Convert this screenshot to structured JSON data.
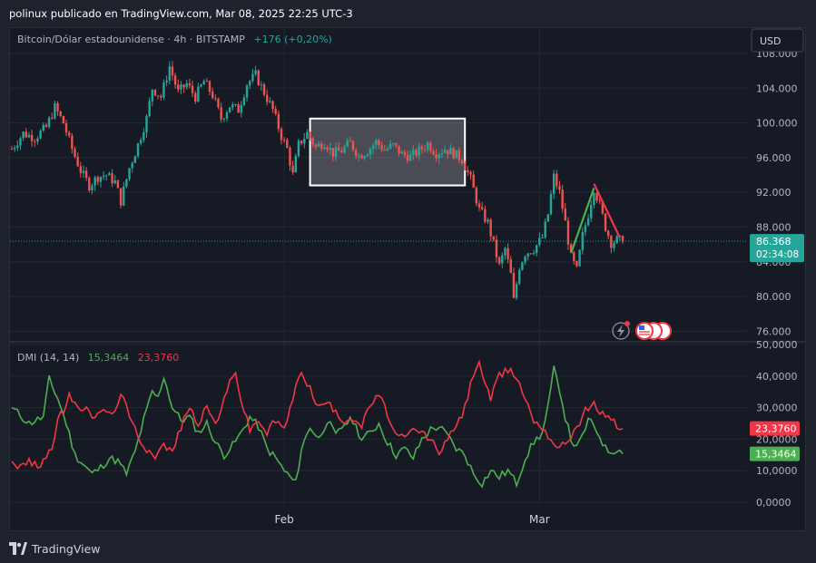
{
  "header": {
    "text": "polinux publicado en TradingView.com, Mar 08, 2025 22:25 UTC-3"
  },
  "footer": {
    "brand": "TradingView"
  },
  "colors": {
    "background": "#1e222d",
    "pane": "#161a25",
    "grid": "#242833",
    "up": "#26a69a",
    "down": "#ef5350",
    "plus_di": "#4caf50",
    "minus_di": "#f23645",
    "box": "#ffffff"
  },
  "chart_data": [
    {
      "type": "candlestick",
      "symbol_label": "Bitcoin/Dólar estadounidense · 4h · BITSTAMP",
      "change_label": "+176 (+0,20%)",
      "currency": "USD",
      "ylim": [
        75000,
        110500
      ],
      "yticks": [
        "108.000",
        "104.000",
        "100.000",
        "96.000",
        "92.000",
        "88.000",
        "84.000",
        "80.000",
        "76.000"
      ],
      "ytick_values": [
        108000,
        104000,
        100000,
        96000,
        92000,
        88000,
        84000,
        80000,
        76000
      ],
      "xticks": [
        "Feb",
        "Mar"
      ],
      "last_price_label": "86.368",
      "last_price": 86368,
      "countdown_label": "02:34:08",
      "close_path": [
        {
          "t": 0,
          "v": 97000
        },
        {
          "t": 4,
          "v": 98800
        },
        {
          "t": 8,
          "v": 98300
        },
        {
          "t": 12,
          "v": 99500
        },
        {
          "t": 15,
          "v": 101800
        },
        {
          "t": 18,
          "v": 100000
        },
        {
          "t": 21,
          "v": 97000
        },
        {
          "t": 24,
          "v": 94500
        },
        {
          "t": 27,
          "v": 92800
        },
        {
          "t": 30,
          "v": 93800
        },
        {
          "t": 33,
          "v": 94000
        },
        {
          "t": 36,
          "v": 93200
        },
        {
          "t": 38,
          "v": 91000
        },
        {
          "t": 41,
          "v": 94800
        },
        {
          "t": 44,
          "v": 97500
        },
        {
          "t": 47,
          "v": 100500
        },
        {
          "t": 49,
          "v": 104000
        },
        {
          "t": 52,
          "v": 103000
        },
        {
          "t": 55,
          "v": 106500
        },
        {
          "t": 58,
          "v": 103500
        },
        {
          "t": 61,
          "v": 104500
        },
        {
          "t": 64,
          "v": 103000
        },
        {
          "t": 67,
          "v": 104800
        },
        {
          "t": 70,
          "v": 103200
        },
        {
          "t": 73,
          "v": 100500
        },
        {
          "t": 76,
          "v": 102000
        },
        {
          "t": 79,
          "v": 101500
        },
        {
          "t": 82,
          "v": 104500
        },
        {
          "t": 85,
          "v": 105500
        },
        {
          "t": 88,
          "v": 103500
        },
        {
          "t": 91,
          "v": 101500
        },
        {
          "t": 94,
          "v": 98500
        },
        {
          "t": 96,
          "v": 97000
        },
        {
          "t": 98,
          "v": 94000
        },
        {
          "t": 100,
          "v": 97500
        },
        {
          "t": 103,
          "v": 98800
        },
        {
          "t": 106,
          "v": 97200
        },
        {
          "t": 109,
          "v": 97800
        },
        {
          "t": 112,
          "v": 96500
        },
        {
          "t": 115,
          "v": 96800
        },
        {
          "t": 118,
          "v": 97700
        },
        {
          "t": 121,
          "v": 96200
        },
        {
          "t": 124,
          "v": 96800
        },
        {
          "t": 127,
          "v": 97800
        },
        {
          "t": 130,
          "v": 96900
        },
        {
          "t": 133,
          "v": 97400
        },
        {
          "t": 136,
          "v": 96400
        },
        {
          "t": 139,
          "v": 96100
        },
        {
          "t": 142,
          "v": 96800
        },
        {
          "t": 145,
          "v": 97600
        },
        {
          "t": 148,
          "v": 96500
        },
        {
          "t": 151,
          "v": 97000
        },
        {
          "t": 154,
          "v": 96500
        },
        {
          "t": 157,
          "v": 95800
        },
        {
          "t": 160,
          "v": 93500
        },
        {
          "t": 163,
          "v": 90000
        },
        {
          "t": 166,
          "v": 88500
        },
        {
          "t": 168,
          "v": 86000
        },
        {
          "t": 170,
          "v": 83500
        },
        {
          "t": 172,
          "v": 85500
        },
        {
          "t": 174,
          "v": 82500
        },
        {
          "t": 175,
          "v": 79500
        },
        {
          "t": 177,
          "v": 83500
        },
        {
          "t": 179,
          "v": 85000
        },
        {
          "t": 182,
          "v": 85500
        },
        {
          "t": 185,
          "v": 86800
        },
        {
          "t": 187,
          "v": 89500
        },
        {
          "t": 189,
          "v": 93800
        },
        {
          "t": 191,
          "v": 92000
        },
        {
          "t": 193,
          "v": 88500
        },
        {
          "t": 195,
          "v": 84500
        },
        {
          "t": 197,
          "v": 83000
        },
        {
          "t": 199,
          "v": 87000
        },
        {
          "t": 201,
          "v": 89500
        },
        {
          "t": 203,
          "v": 92500
        },
        {
          "t": 205,
          "v": 90500
        },
        {
          "t": 207,
          "v": 88000
        },
        {
          "t": 209,
          "v": 86200
        },
        {
          "t": 211,
          "v": 86500
        },
        {
          "t": 213,
          "v": 86368
        }
      ]
    },
    {
      "type": "line",
      "indicator_label": "DMI (14, 14)",
      "plus_di_label": "15,3464",
      "minus_di_label": "23,3760",
      "ylim": [
        0,
        50000
      ],
      "yticks": [
        "50,0000",
        "40,0000",
        "30,0000",
        "20,0000",
        "10,0000",
        "0,0000"
      ],
      "ytick_values": [
        50000,
        40000,
        30000,
        20000,
        10000,
        0
      ],
      "series": [
        {
          "name": "+DI",
          "color": "#4caf50",
          "last": 15346.4,
          "path": [
            {
              "t": 0,
              "v": 30000
            },
            {
              "t": 6,
              "v": 25000
            },
            {
              "t": 11,
              "v": 27000
            },
            {
              "t": 13,
              "v": 39000
            },
            {
              "t": 16,
              "v": 33000
            },
            {
              "t": 19,
              "v": 25000
            },
            {
              "t": 22,
              "v": 15000
            },
            {
              "t": 25,
              "v": 12000
            },
            {
              "t": 28,
              "v": 9000
            },
            {
              "t": 31,
              "v": 11000
            },
            {
              "t": 34,
              "v": 14000
            },
            {
              "t": 37,
              "v": 13000
            },
            {
              "t": 40,
              "v": 9000
            },
            {
              "t": 43,
              "v": 16000
            },
            {
              "t": 46,
              "v": 26000
            },
            {
              "t": 49,
              "v": 35000
            },
            {
              "t": 51,
              "v": 33000
            },
            {
              "t": 53,
              "v": 40000
            },
            {
              "t": 56,
              "v": 30000
            },
            {
              "t": 59,
              "v": 26000
            },
            {
              "t": 62,
              "v": 27000
            },
            {
              "t": 65,
              "v": 22000
            },
            {
              "t": 68,
              "v": 25000
            },
            {
              "t": 71,
              "v": 19000
            },
            {
              "t": 74,
              "v": 15000
            },
            {
              "t": 77,
              "v": 18000
            },
            {
              "t": 80,
              "v": 22000
            },
            {
              "t": 83,
              "v": 27000
            },
            {
              "t": 86,
              "v": 24000
            },
            {
              "t": 89,
              "v": 17000
            },
            {
              "t": 92,
              "v": 14000
            },
            {
              "t": 95,
              "v": 10000
            },
            {
              "t": 97,
              "v": 8000
            },
            {
              "t": 99,
              "v": 6000
            },
            {
              "t": 101,
              "v": 17000
            },
            {
              "t": 104,
              "v": 24000
            },
            {
              "t": 107,
              "v": 20000
            },
            {
              "t": 110,
              "v": 26000
            },
            {
              "t": 113,
              "v": 21000
            },
            {
              "t": 116,
              "v": 25000
            },
            {
              "t": 119,
              "v": 26000
            },
            {
              "t": 122,
              "v": 20000
            },
            {
              "t": 125,
              "v": 22000
            },
            {
              "t": 128,
              "v": 25000
            },
            {
              "t": 131,
              "v": 19000
            },
            {
              "t": 134,
              "v": 15000
            },
            {
              "t": 137,
              "v": 17000
            },
            {
              "t": 140,
              "v": 14000
            },
            {
              "t": 143,
              "v": 20000
            },
            {
              "t": 146,
              "v": 23000
            },
            {
              "t": 149,
              "v": 24000
            },
            {
              "t": 152,
              "v": 21000
            },
            {
              "t": 155,
              "v": 17000
            },
            {
              "t": 158,
              "v": 15000
            },
            {
              "t": 161,
              "v": 9000
            },
            {
              "t": 164,
              "v": 6000
            },
            {
              "t": 167,
              "v": 10000
            },
            {
              "t": 170,
              "v": 8000
            },
            {
              "t": 173,
              "v": 10000
            },
            {
              "t": 176,
              "v": 6000
            },
            {
              "t": 179,
              "v": 14000
            },
            {
              "t": 182,
              "v": 19000
            },
            {
              "t": 185,
              "v": 22000
            },
            {
              "t": 187,
              "v": 30000
            },
            {
              "t": 189,
              "v": 42000
            },
            {
              "t": 191,
              "v": 36000
            },
            {
              "t": 193,
              "v": 27000
            },
            {
              "t": 195,
              "v": 20000
            },
            {
              "t": 197,
              "v": 17000
            },
            {
              "t": 199,
              "v": 21000
            },
            {
              "t": 201,
              "v": 26000
            },
            {
              "t": 203,
              "v": 24000
            },
            {
              "t": 205,
              "v": 21000
            },
            {
              "t": 207,
              "v": 17000
            },
            {
              "t": 209,
              "v": 16000
            },
            {
              "t": 211,
              "v": 17000
            },
            {
              "t": 213,
              "v": 15346
            }
          ]
        },
        {
          "name": "−DI",
          "color": "#f23645",
          "last": 23376.0,
          "path": [
            {
              "t": 0,
              "v": 13000
            },
            {
              "t": 3,
              "v": 11000
            },
            {
              "t": 6,
              "v": 13000
            },
            {
              "t": 9,
              "v": 11000
            },
            {
              "t": 12,
              "v": 15000
            },
            {
              "t": 14,
              "v": 17000
            },
            {
              "t": 16,
              "v": 26000
            },
            {
              "t": 18,
              "v": 29000
            },
            {
              "t": 20,
              "v": 34000
            },
            {
              "t": 23,
              "v": 29000
            },
            {
              "t": 26,
              "v": 31000
            },
            {
              "t": 29,
              "v": 26000
            },
            {
              "t": 32,
              "v": 30000
            },
            {
              "t": 35,
              "v": 27000
            },
            {
              "t": 38,
              "v": 35000
            },
            {
              "t": 41,
              "v": 27000
            },
            {
              "t": 44,
              "v": 21000
            },
            {
              "t": 47,
              "v": 17000
            },
            {
              "t": 50,
              "v": 15000
            },
            {
              "t": 53,
              "v": 18000
            },
            {
              "t": 56,
              "v": 16000
            },
            {
              "t": 59,
              "v": 24000
            },
            {
              "t": 62,
              "v": 30000
            },
            {
              "t": 65,
              "v": 25000
            },
            {
              "t": 68,
              "v": 30000
            },
            {
              "t": 71,
              "v": 25000
            },
            {
              "t": 74,
              "v": 32000
            },
            {
              "t": 76,
              "v": 38000
            },
            {
              "t": 78,
              "v": 42000
            },
            {
              "t": 80,
              "v": 32000
            },
            {
              "t": 83,
              "v": 23000
            },
            {
              "t": 86,
              "v": 26000
            },
            {
              "t": 89,
              "v": 22000
            },
            {
              "t": 92,
              "v": 26000
            },
            {
              "t": 95,
              "v": 23000
            },
            {
              "t": 98,
              "v": 33000
            },
            {
              "t": 101,
              "v": 42000
            },
            {
              "t": 104,
              "v": 36000
            },
            {
              "t": 107,
              "v": 30000
            },
            {
              "t": 110,
              "v": 32000
            },
            {
              "t": 113,
              "v": 28000
            },
            {
              "t": 116,
              "v": 26000
            },
            {
              "t": 119,
              "v": 27000
            },
            {
              "t": 122,
              "v": 24000
            },
            {
              "t": 125,
              "v": 31000
            },
            {
              "t": 128,
              "v": 34000
            },
            {
              "t": 131,
              "v": 28000
            },
            {
              "t": 134,
              "v": 21000
            },
            {
              "t": 137,
              "v": 20000
            },
            {
              "t": 140,
              "v": 23000
            },
            {
              "t": 143,
              "v": 22000
            },
            {
              "t": 146,
              "v": 20000
            },
            {
              "t": 149,
              "v": 16000
            },
            {
              "t": 152,
              "v": 20000
            },
            {
              "t": 155,
              "v": 24000
            },
            {
              "t": 158,
              "v": 30000
            },
            {
              "t": 161,
              "v": 41000
            },
            {
              "t": 163,
              "v": 45000
            },
            {
              "t": 165,
              "v": 37000
            },
            {
              "t": 167,
              "v": 33000
            },
            {
              "t": 170,
              "v": 40000
            },
            {
              "t": 173,
              "v": 42000
            },
            {
              "t": 176,
              "v": 40000
            },
            {
              "t": 179,
              "v": 33000
            },
            {
              "t": 182,
              "v": 26000
            },
            {
              "t": 185,
              "v": 24000
            },
            {
              "t": 188,
              "v": 20000
            },
            {
              "t": 191,
              "v": 17000
            },
            {
              "t": 194,
              "v": 20000
            },
            {
              "t": 197,
              "v": 24000
            },
            {
              "t": 200,
              "v": 29000
            },
            {
              "t": 203,
              "v": 31000
            },
            {
              "t": 206,
              "v": 28000
            },
            {
              "t": 209,
              "v": 27000
            },
            {
              "t": 211,
              "v": 24000
            },
            {
              "t": 213,
              "v": 23376
            }
          ]
        }
      ]
    }
  ],
  "drawings": {
    "range_box": {
      "t_start": 104,
      "t_end": 158,
      "top": 100500,
      "bottom": 92800
    },
    "green_line": {
      "t1": 195,
      "v1": 85000,
      "t2": 203,
      "v2": 92500
    },
    "red_line": {
      "t1": 203,
      "v1": 93000,
      "t2": 212,
      "v2": 86800
    },
    "time_markers": [
      {
        "label": "Feb",
        "t": 95
      },
      {
        "label": "Mar",
        "t": 184
      }
    ]
  }
}
